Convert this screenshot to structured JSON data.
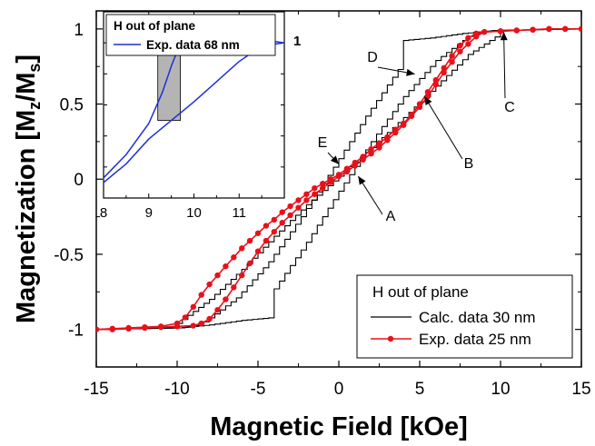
{
  "chart_data": [
    {
      "type": "line",
      "xlabel": "Magnetic Field [kOe]",
      "ylabel_parts": [
        "Magnetization [M",
        "z",
        "/M",
        "s",
        "]"
      ],
      "xlim": [
        -15,
        15
      ],
      "ylim": [
        -1.25,
        1.12
      ],
      "x_ticks": [
        "-15",
        "-10",
        "-5",
        "0",
        "5",
        "10",
        "15"
      ],
      "y_ticks": [
        "-1",
        "-0.5",
        "0",
        "0.5",
        "1"
      ],
      "grid": false,
      "legend_position": "bottom-right",
      "legend_title": "H out of plane",
      "colors": {
        "calc": "#000000",
        "exp": "#e8111a",
        "inset": "#1f2fd6",
        "highlight": "#b4b4b4"
      },
      "series": [
        {
          "name": "Calc. data 30 nm",
          "style": "staircase-line",
          "branches": [
            {
              "x": [
                -15,
                -10,
                -8,
                -6,
                -4,
                -4,
                -2,
                0,
                2,
                4,
                6,
                8,
                9,
                9.5,
                15
              ],
              "y": [
                -1,
                -0.99,
                -0.97,
                -0.94,
                -0.92,
                -0.73,
                -0.42,
                -0.08,
                0.25,
                0.55,
                0.79,
                0.95,
                0.985,
                0.99,
                1.0
              ]
            },
            {
              "x": [
                15,
                10,
                8,
                6,
                4,
                4,
                2,
                0,
                -2,
                -4,
                -6,
                -8,
                -9,
                -9.5,
                -15
              ],
              "y": [
                1,
                0.99,
                0.97,
                0.94,
                0.92,
                0.73,
                0.42,
                0.08,
                -0.25,
                -0.55,
                -0.79,
                -0.95,
                -0.985,
                -0.99,
                -1.0
              ]
            },
            {
              "x": [
                -10,
                -8,
                -6,
                -4,
                -2,
                0,
                2,
                4,
                6,
                8,
                10
              ],
              "y": [
                -0.96,
                -0.8,
                -0.6,
                -0.38,
                -0.17,
                0.02,
                0.21,
                0.41,
                0.62,
                0.83,
                0.97
              ]
            }
          ]
        },
        {
          "name": "Exp. data 25 nm",
          "style": "line-with-markers",
          "branches": [
            {
              "x": [
                -15,
                -14,
                -13,
                -12,
                -11,
                -10,
                -9.5,
                -9,
                -8.5,
                -8,
                -7.5,
                -7,
                -6.5,
                -6,
                -5.5,
                -5,
                -4.5,
                -4,
                -3.5,
                -3,
                -2.5,
                -2,
                -1.5,
                -1,
                -0.5,
                0,
                0.5,
                1,
                1.5,
                2,
                2.5,
                3,
                3.5,
                4,
                4.5,
                5,
                5.5,
                6,
                6.5,
                7,
                7.5,
                8,
                8.5,
                9,
                10,
                11,
                12,
                13,
                14,
                15
              ],
              "y": [
                -1,
                -0.995,
                -0.99,
                -0.985,
                -0.98,
                -0.96,
                -0.92,
                -0.85,
                -0.77,
                -0.7,
                -0.64,
                -0.58,
                -0.52,
                -0.46,
                -0.41,
                -0.36,
                -0.31,
                -0.27,
                -0.22,
                -0.18,
                -0.14,
                -0.1,
                -0.06,
                -0.03,
                0.0,
                0.03,
                0.07,
                0.11,
                0.15,
                0.2,
                0.24,
                0.28,
                0.33,
                0.37,
                0.43,
                0.5,
                0.58,
                0.66,
                0.74,
                0.82,
                0.89,
                0.94,
                0.97,
                0.98,
                0.985,
                0.99,
                0.995,
                1.0,
                1.0,
                1.0
              ]
            },
            {
              "x": [
                15,
                14,
                13,
                12,
                11,
                10,
                9,
                8.5,
                8,
                7.5,
                7,
                6.5,
                6,
                5.5,
                5,
                4.5,
                4,
                3.5,
                3,
                2.5,
                2,
                1.5,
                1,
                0.5,
                0,
                -0.5,
                -1,
                -1.5,
                -2,
                -2.5,
                -3,
                -3.5,
                -4,
                -4.5,
                -5,
                -5.5,
                -6,
                -6.5,
                -7,
                -7.5,
                -8,
                -8.5,
                -9,
                -10,
                -11,
                -12,
                -13,
                -14,
                -15
              ],
              "y": [
                1,
                1,
                1,
                0.995,
                0.99,
                0.985,
                0.98,
                0.95,
                0.9,
                0.85,
                0.78,
                0.71,
                0.63,
                0.55,
                0.48,
                0.42,
                0.36,
                0.31,
                0.26,
                0.21,
                0.17,
                0.13,
                0.09,
                0.05,
                0.02,
                -0.02,
                -0.06,
                -0.1,
                -0.14,
                -0.19,
                -0.24,
                -0.29,
                -0.35,
                -0.41,
                -0.48,
                -0.56,
                -0.64,
                -0.72,
                -0.8,
                -0.87,
                -0.93,
                -0.96,
                -0.975,
                -0.98,
                -0.985,
                -0.99,
                -0.995,
                -1,
                -1
              ]
            }
          ]
        }
      ],
      "annotations": [
        {
          "label": "A",
          "points_to": [
            1.2,
            0.02
          ]
        },
        {
          "label": "B",
          "points_to": [
            5.3,
            0.55
          ]
        },
        {
          "label": "C",
          "points_to": [
            10.2,
            0.98
          ]
        },
        {
          "label": "D",
          "points_to": [
            4.7,
            0.7
          ]
        },
        {
          "label": "E",
          "points_to": [
            0.0,
            0.1
          ]
        }
      ]
    },
    {
      "type": "line",
      "role": "inset",
      "xlim": [
        8,
        12
      ],
      "ylim": [
        0,
        1.2
      ],
      "x_ticks": [
        "8",
        "9",
        "10",
        "11"
      ],
      "right_label": "1",
      "legend_title": "H out of plane",
      "highlight_x": [
        9.2,
        9.7
      ],
      "series": [
        {
          "name": "Exp. data 68 nm",
          "branches": [
            {
              "x": [
                8,
                8.5,
                9,
                9.3,
                9.5,
                9.7,
                10,
                10.5,
                11,
                11.5,
                12
              ],
              "y": [
                0.13,
                0.28,
                0.48,
                0.68,
                0.85,
                1.0,
                1.02,
                1.02,
                1.02,
                1.02,
                1.0
              ]
            },
            {
              "x": [
                8,
                8.5,
                9,
                9.5,
                10,
                10.5,
                11,
                11.5,
                12
              ],
              "y": [
                0.1,
                0.22,
                0.38,
                0.5,
                0.62,
                0.75,
                0.88,
                0.98,
                1.0
              ]
            }
          ]
        }
      ]
    }
  ]
}
